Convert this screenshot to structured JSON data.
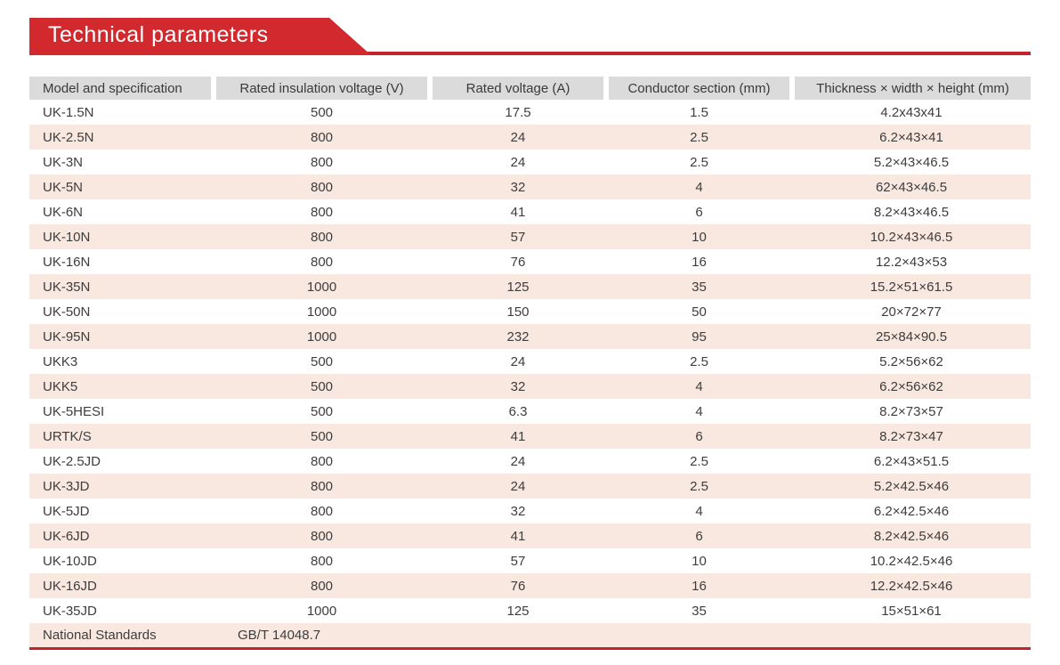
{
  "header": {
    "title": "Technical parameters"
  },
  "table": {
    "columns": [
      "Model and specification",
      "Rated insulation voltage (V)",
      "Rated voltage (A)",
      "Conductor section (mm)",
      "Thickness × width × height (mm)"
    ],
    "rows": [
      [
        "UK-1.5N",
        "500",
        "17.5",
        "1.5",
        "4.2x43x41"
      ],
      [
        "UK-2.5N",
        "800",
        "24",
        "2.5",
        "6.2×43×41"
      ],
      [
        "UK-3N",
        "800",
        "24",
        "2.5",
        "5.2×43×46.5"
      ],
      [
        "UK-5N",
        "800",
        "32",
        "4",
        "62×43×46.5"
      ],
      [
        "UK-6N",
        "800",
        "41",
        "6",
        "8.2×43×46.5"
      ],
      [
        "UK-10N",
        "800",
        "57",
        "10",
        "10.2×43×46.5"
      ],
      [
        "UK-16N",
        "800",
        "76",
        "16",
        "12.2×43×53"
      ],
      [
        "UK-35N",
        "1000",
        "125",
        "35",
        "15.2×51×61.5"
      ],
      [
        "UK-50N",
        "1000",
        "150",
        "50",
        "20×72×77"
      ],
      [
        "UK-95N",
        "1000",
        "232",
        "95",
        "25×84×90.5"
      ],
      [
        "UKK3",
        "500",
        "24",
        "2.5",
        "5.2×56×62"
      ],
      [
        "UKK5",
        "500",
        "32",
        "4",
        "6.2×56×62"
      ],
      [
        "UK-5HESI",
        "500",
        "6.3",
        "4",
        "8.2×73×57"
      ],
      [
        "URTK/S",
        "500",
        "41",
        "6",
        "8.2×73×47"
      ],
      [
        "UK-2.5JD",
        "800",
        "24",
        "2.5",
        "6.2×43×51.5"
      ],
      [
        "UK-3JD",
        "800",
        "24",
        "2.5",
        "5.2×42.5×46"
      ],
      [
        "UK-5JD",
        "800",
        "32",
        "4",
        "6.2×42.5×46"
      ],
      [
        "UK-6JD",
        "800",
        "41",
        "6",
        "8.2×42.5×46"
      ],
      [
        "UK-10JD",
        "800",
        "57",
        "10",
        "10.2×42.5×46"
      ],
      [
        "UK-16JD",
        "800",
        "76",
        "16",
        "12.2×42.5×46"
      ],
      [
        "UK-35JD",
        "1000",
        "125",
        "35",
        "15×51×61"
      ]
    ],
    "footer": {
      "label": "National Standards",
      "value": "GB/T 14048.7"
    }
  },
  "colors": {
    "accent_red": "#d2292f",
    "line_red": "#c4232b",
    "header_gray": "#dbdbdb",
    "row_peach": "#f9e8e0"
  }
}
